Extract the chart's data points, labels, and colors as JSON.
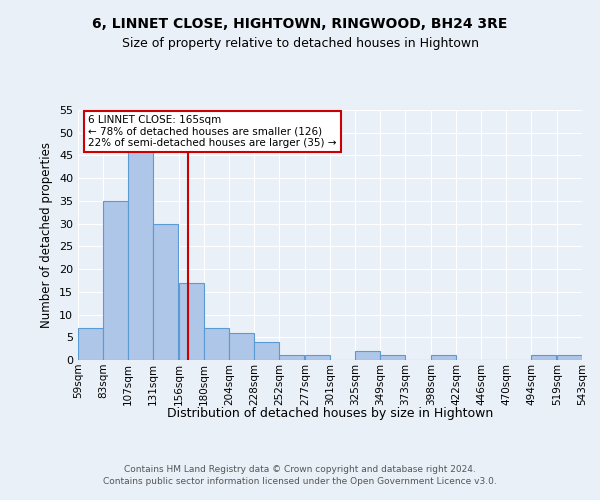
{
  "title": "6, LINNET CLOSE, HIGHTOWN, RINGWOOD, BH24 3RE",
  "subtitle": "Size of property relative to detached houses in Hightown",
  "xlabel": "Distribution of detached houses by size in Hightown",
  "ylabel": "Number of detached properties",
  "bin_edges": [
    59,
    83,
    107,
    131,
    156,
    180,
    204,
    228,
    252,
    277,
    301,
    325,
    349,
    373,
    398,
    422,
    446,
    470,
    494,
    519,
    543
  ],
  "bin_labels": [
    "59sqm",
    "83sqm",
    "107sqm",
    "131sqm",
    "156sqm",
    "180sqm",
    "204sqm",
    "228sqm",
    "252sqm",
    "277sqm",
    "301sqm",
    "325sqm",
    "349sqm",
    "373sqm",
    "398sqm",
    "422sqm",
    "446sqm",
    "470sqm",
    "494sqm",
    "519sqm",
    "543sqm"
  ],
  "bar_heights": [
    7,
    35,
    46,
    30,
    17,
    7,
    6,
    4,
    1,
    1,
    0,
    2,
    1,
    0,
    1,
    0,
    0,
    0,
    1,
    1,
    0
  ],
  "bar_color": "#aec6e8",
  "bar_edge_color": "#5b9bd5",
  "property_value": 165,
  "vline_color": "#cc0000",
  "annotation_line1": "6 LINNET CLOSE: 165sqm",
  "annotation_line2": "← 78% of detached houses are smaller (126)",
  "annotation_line3": "22% of semi-detached houses are larger (35) →",
  "annotation_box_color": "#ffffff",
  "annotation_box_edge": "#cc0000",
  "ylim": [
    0,
    55
  ],
  "yticks": [
    0,
    5,
    10,
    15,
    20,
    25,
    30,
    35,
    40,
    45,
    50,
    55
  ],
  "footer_line1": "Contains HM Land Registry data © Crown copyright and database right 2024.",
  "footer_line2": "Contains public sector information licensed under the Open Government Licence v3.0.",
  "bg_color": "#eaf0f8",
  "grid_color": "#ffffff"
}
